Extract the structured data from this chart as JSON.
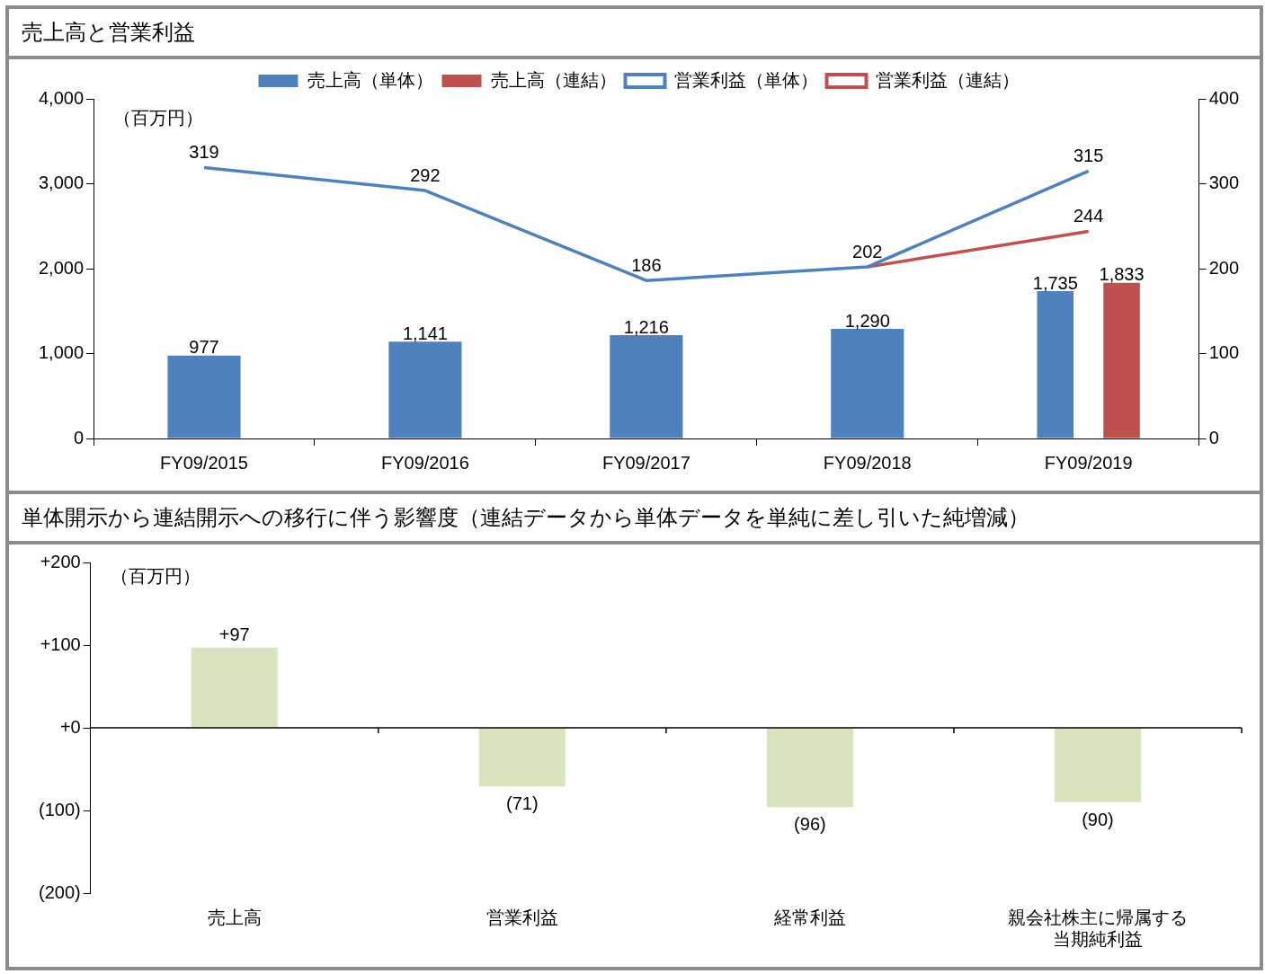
{
  "chart_data": [
    {
      "type": "bar",
      "title": "売上高と営業利益",
      "categories": [
        "FY09/2015",
        "FY09/2016",
        "FY09/2017",
        "FY09/2018",
        "FY09/2019"
      ],
      "legend": "top",
      "marker": "none",
      "annotations": [
        "（百万円）"
      ],
      "ylim": [
        0,
        4000
      ],
      "yticks": [
        {
          "value": 0,
          "label": "0"
        },
        {
          "value": 1000,
          "label": "1,000"
        },
        {
          "value": 2000,
          "label": "2,000"
        },
        {
          "value": 3000,
          "label": "3,000"
        },
        {
          "value": 4000,
          "label": "4,000"
        }
      ],
      "y2lim": [
        0,
        400
      ],
      "y2ticks": [
        0,
        100,
        200,
        300,
        400
      ],
      "series": [
        {
          "name": "売上高（単体）",
          "type": "bar",
          "color": "#4f81bd",
          "values": [
            977,
            1141,
            1216,
            1290,
            1735
          ],
          "value_labels": [
            "977",
            "1,141",
            "1,216",
            "1,290",
            "1,735"
          ]
        },
        {
          "name": "売上高（連結）",
          "type": "bar",
          "color": "#c0504d",
          "values": [
            null,
            null,
            null,
            null,
            1833
          ],
          "value_labels": [
            null,
            null,
            null,
            null,
            "1,833"
          ]
        },
        {
          "name": "営業利益（単体）",
          "type": "line",
          "axis": "y2",
          "color": "#4f81bd",
          "values": [
            319,
            292,
            186,
            202,
            315
          ],
          "value_labels": [
            "319",
            "292",
            "186",
            "202",
            "315"
          ]
        },
        {
          "name": "営業利益（連結）",
          "type": "line",
          "axis": "y2",
          "color": "#c0504d",
          "values": [
            null,
            null,
            null,
            202,
            244
          ],
          "value_labels": [
            null,
            null,
            null,
            null,
            "244"
          ]
        }
      ]
    },
    {
      "type": "bar",
      "title": "単体開示から連結開示への移行に伴う影響度（連結データから単体データを単純に差し引いた純増減）",
      "categories": [
        "売上高",
        "営業利益",
        "経常利益",
        "親会社株主に帰属する当期純利益"
      ],
      "annotations": [
        "（百万円）"
      ],
      "values": [
        97,
        -71,
        -96,
        -90
      ],
      "color": "#d7e4bd",
      "value_labels": [
        "+97",
        "(71)",
        "(96)",
        "(90)"
      ],
      "ylim": [
        -200,
        200
      ],
      "yticks": [
        {
          "value": -200,
          "label": "(200)"
        },
        {
          "value": -100,
          "label": "(100)"
        },
        {
          "value": 0,
          "label": "+0"
        },
        {
          "value": 100,
          "label": "+100"
        },
        {
          "value": 200,
          "label": "+200"
        }
      ]
    }
  ]
}
